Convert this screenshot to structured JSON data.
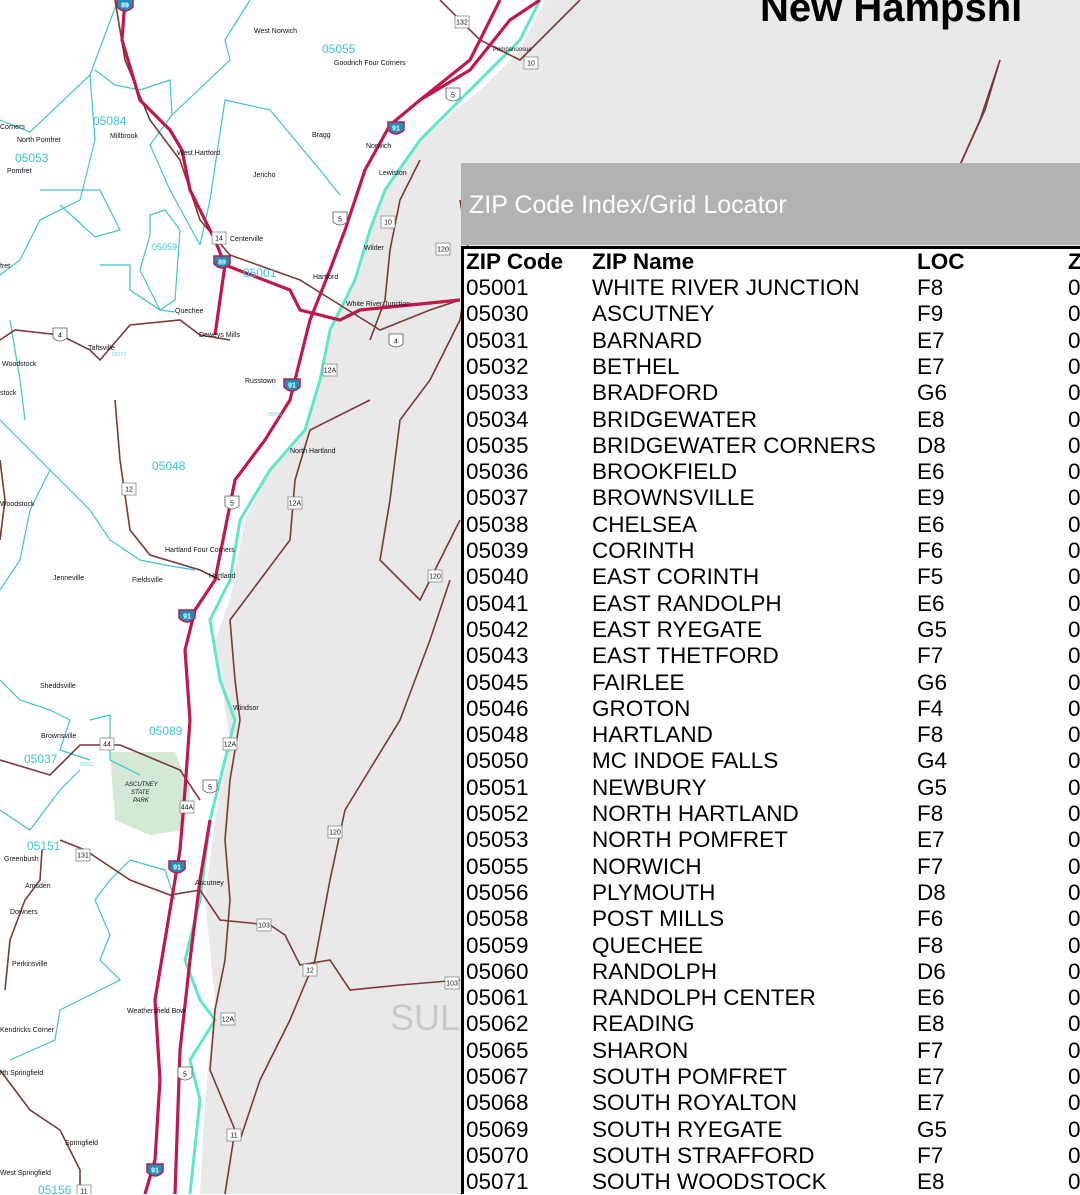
{
  "map": {
    "title": "New Hampshi",
    "county_label": "SUL",
    "park_label": [
      "ASCUTNEY",
      "STATE",
      "PARK"
    ],
    "colors": {
      "land_vt": "#ffffff",
      "land_nh": "#e8e8e8",
      "interstate": "#c0184a",
      "road": "#7a3a32",
      "zip_boundary": "#3cc3d6",
      "river": "#5ee8c8",
      "park": "#cfe6d2"
    },
    "zip_labels": [
      "05055",
      "05084",
      "05053",
      "05059",
      "05001",
      "05048",
      "05089",
      "05037",
      "05151",
      "05156"
    ],
    "small_zip_labels": [
      "05073",
      "05052",
      "05062"
    ],
    "towns": [
      "West Norwich",
      "Goodrich Four Corners",
      "Corners",
      "North Pomfret",
      "Millbrook",
      "Pomfret",
      "West Hartford",
      "Bragg",
      "Norwich",
      "Lewiston",
      "Jericho",
      "Centerville",
      "Hartford",
      "Wilder",
      "White River Junction",
      "Quechee",
      "Deweys Mills",
      "Taftsville",
      "Woodstock",
      "Russtown",
      "North Hartland",
      "Hartland Four Corners",
      "Hartland",
      "Jenneville",
      "Fieldsville",
      "Sheddsville",
      "Windsor",
      "Brownsville",
      "Greenbush",
      "Amsden",
      "Ascutney",
      "Downers",
      "Perkinsville",
      "Weathersfield Bow",
      "Kendricks Corner",
      "rth Springfield",
      "Springfield",
      "West Springfield",
      "Pompanoosuc",
      "Woodstock",
      "fret",
      "stock"
    ],
    "shields": {
      "interstate": [
        "89",
        "89",
        "91",
        "91",
        "91",
        "91",
        "91"
      ],
      "us": [
        "5",
        "5",
        "5",
        "5",
        "5",
        "4",
        "4"
      ],
      "state": [
        "10",
        "10",
        "120",
        "120",
        "120",
        "12A",
        "12A",
        "12A",
        "12A",
        "12",
        "14",
        "44",
        "44A",
        "131",
        "103",
        "103",
        "12",
        "11",
        "11",
        "132"
      ]
    }
  },
  "index": {
    "heading": "ZIP Code Index/Grid Locator",
    "columns": [
      "ZIP Code",
      "ZIP Name",
      "LOC",
      "Z"
    ],
    "rows": [
      [
        "05001",
        "WHITE RIVER JUNCTION",
        "F8",
        "0"
      ],
      [
        "05030",
        "ASCUTNEY",
        "F9",
        "0"
      ],
      [
        "05031",
        "BARNARD",
        "E7",
        "0"
      ],
      [
        "05032",
        "BETHEL",
        "E7",
        "0"
      ],
      [
        "05033",
        "BRADFORD",
        "G6",
        "0"
      ],
      [
        "05034",
        "BRIDGEWATER",
        "E8",
        "0"
      ],
      [
        "05035",
        "BRIDGEWATER CORNERS",
        "D8",
        "0"
      ],
      [
        "05036",
        "BROOKFIELD",
        "E6",
        "0"
      ],
      [
        "05037",
        "BROWNSVILLE",
        "E9",
        "0"
      ],
      [
        "05038",
        "CHELSEA",
        "E6",
        "0"
      ],
      [
        "05039",
        "CORINTH",
        "F6",
        "0"
      ],
      [
        "05040",
        "EAST CORINTH",
        "F5",
        "0"
      ],
      [
        "05041",
        "EAST RANDOLPH",
        "E6",
        "0"
      ],
      [
        "05042",
        "EAST RYEGATE",
        "G5",
        "0"
      ],
      [
        "05043",
        "EAST THETFORD",
        "F7",
        "0"
      ],
      [
        "05045",
        "FAIRLEE",
        "G6",
        "0"
      ],
      [
        "05046",
        "GROTON",
        "F4",
        "0"
      ],
      [
        "05048",
        "HARTLAND",
        "F8",
        "0"
      ],
      [
        "05050",
        "MC INDOE FALLS",
        "G4",
        "0"
      ],
      [
        "05051",
        "NEWBURY",
        "G5",
        "0"
      ],
      [
        "05052",
        "NORTH HARTLAND",
        "F8",
        "0"
      ],
      [
        "05053",
        "NORTH POMFRET",
        "E7",
        "0"
      ],
      [
        "05055",
        "NORWICH",
        "F7",
        "0"
      ],
      [
        "05056",
        "PLYMOUTH",
        "D8",
        "0"
      ],
      [
        "05058",
        "POST MILLS",
        "F6",
        "0"
      ],
      [
        "05059",
        "QUECHEE",
        "F8",
        "0"
      ],
      [
        "05060",
        "RANDOLPH",
        "D6",
        "0"
      ],
      [
        "05061",
        "RANDOLPH CENTER",
        "E6",
        "0"
      ],
      [
        "05062",
        "READING",
        "E8",
        "0"
      ],
      [
        "05065",
        "SHARON",
        "F7",
        "0"
      ],
      [
        "05067",
        "SOUTH POMFRET",
        "E7",
        "0"
      ],
      [
        "05068",
        "SOUTH ROYALTON",
        "E7",
        "0"
      ],
      [
        "05069",
        "SOUTH RYEGATE",
        "G5",
        "0"
      ],
      [
        "05070",
        "SOUTH STRAFFORD",
        "F7",
        "0"
      ],
      [
        "05071",
        "SOUTH WOODSTOCK",
        "E8",
        "0"
      ]
    ]
  }
}
